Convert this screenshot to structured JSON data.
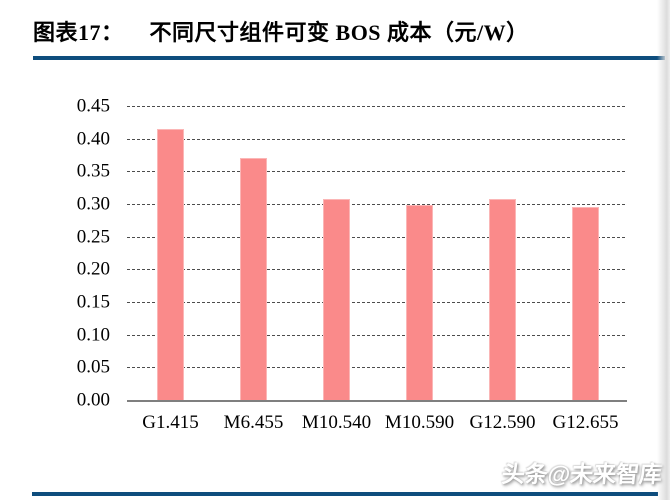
{
  "header": {
    "figure_label": "图表17：",
    "title": "不同尺寸组件可变 BOS 成本（元/W）"
  },
  "footer": {
    "watermark": "头条@未来智库"
  },
  "colors": {
    "accent_rule": "#0E4D7D",
    "bar_fill": "#FA8A8A",
    "bar_edge": "#FBB6B6",
    "axis_line": "#7F7F7F",
    "gridline": "#4D4D4D",
    "text": "#000000"
  },
  "chart_data": {
    "type": "bar",
    "title": "不同尺寸组件可变 BOS 成本（元/W）",
    "categories": [
      "G1.415",
      "M6.455",
      "M10.540",
      "M10.590",
      "G12.590",
      "G12.655"
    ],
    "values": [
      0.415,
      0.37,
      0.307,
      0.298,
      0.307,
      0.295
    ],
    "xlabel": "",
    "ylabel": "",
    "ylim": [
      0,
      0.45
    ],
    "ytick_step": 0.05,
    "ytick_labels": [
      "0.45",
      "0.40",
      "0.35",
      "0.30",
      "0.25",
      "0.20",
      "0.15",
      "0.10",
      "0.05",
      "0.00"
    ],
    "grid": true,
    "grid_style": "fine-dashed",
    "legend_position": "none",
    "bar_color": "#FA8A8A"
  }
}
